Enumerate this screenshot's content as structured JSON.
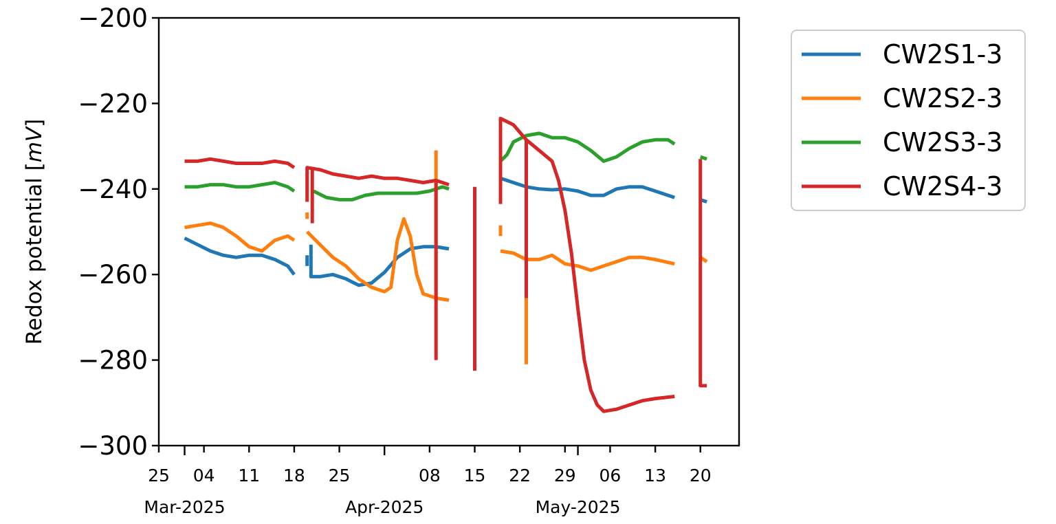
{
  "chart_data": {
    "type": "line",
    "title": "",
    "xlabel": "",
    "ylabel": "Redox potential",
    "ylabel_unit": "mV",
    "ylim": [
      -300,
      -200
    ],
    "yticks": [
      -300,
      -280,
      -260,
      -240,
      -220,
      -200
    ],
    "ytick_labels": [
      "−300",
      "−280",
      "−260",
      "−240",
      "−220",
      "−200"
    ],
    "xlim": [
      "2025-02-25",
      "2025-05-26"
    ],
    "grid": false,
    "legend": "outside-top-right",
    "xticks_major": [
      {
        "date": "2025-02-25",
        "label": "25"
      },
      {
        "date": "2025-03-04",
        "label": "04"
      },
      {
        "date": "2025-03-11",
        "label": "11"
      },
      {
        "date": "2025-03-18",
        "label": "18"
      },
      {
        "date": "2025-03-25",
        "label": "25"
      },
      {
        "date": "2025-04-08",
        "label": "08"
      },
      {
        "date": "2025-04-15",
        "label": "15"
      },
      {
        "date": "2025-04-22",
        "label": "22"
      },
      {
        "date": "2025-04-29",
        "label": "29"
      },
      {
        "date": "2025-05-06",
        "label": "06"
      },
      {
        "date": "2025-05-13",
        "label": "13"
      },
      {
        "date": "2025-05-20",
        "label": "20"
      }
    ],
    "xticks_month": [
      {
        "date": "2025-03-01",
        "label": "Mar-2025"
      },
      {
        "date": "2025-04-01",
        "label": "Apr-2025"
      },
      {
        "date": "2025-05-01",
        "label": "May-2025"
      }
    ],
    "series": [
      {
        "name": "CW2S1-3",
        "color": "#1f77b4",
        "segments": [
          [
            [
              "2025-03-01",
              -251.5
            ],
            [
              "2025-03-03",
              -253
            ],
            [
              "2025-03-05",
              -254.5
            ],
            [
              "2025-03-07",
              -255.5
            ],
            [
              "2025-03-09",
              -256
            ],
            [
              "2025-03-11",
              -255.5
            ],
            [
              "2025-03-13",
              -255.5
            ],
            [
              "2025-03-15",
              -256.5
            ],
            [
              "2025-03-17",
              -258
            ],
            [
              "2025-03-18",
              -260
            ]
          ],
          [
            [
              "2025-03-20",
              -255.5
            ],
            [
              "2025-03-20",
              -258
            ]
          ],
          [
            [
              "2025-03-20.6",
              -253
            ],
            [
              "2025-03-20.6",
              -260.5
            ],
            [
              "2025-03-22",
              -260.5
            ],
            [
              "2025-03-24",
              -260
            ],
            [
              "2025-03-26",
              -261
            ],
            [
              "2025-03-28",
              -262.5
            ],
            [
              "2025-03-30",
              -262
            ],
            [
              "2025-04-01",
              -259.5
            ],
            [
              "2025-04-03",
              -256
            ],
            [
              "2025-04-05",
              -254
            ],
            [
              "2025-04-07",
              -253.5
            ],
            [
              "2025-04-09",
              -253.5
            ],
            [
              "2025-04-11",
              -254
            ]
          ],
          [
            [
              "2025-04-15",
              -253.5
            ],
            [
              "2025-04-15",
              -255
            ]
          ],
          [
            [
              "2025-04-19",
              -237.5
            ],
            [
              "2025-04-21",
              -238.5
            ],
            [
              "2025-04-23",
              -239.5
            ],
            [
              "2025-04-25",
              -240
            ],
            [
              "2025-04-27",
              -240.2
            ],
            [
              "2025-04-29",
              -240
            ],
            [
              "2025-05-01",
              -240.5
            ],
            [
              "2025-05-03",
              -241.5
            ],
            [
              "2025-05-05",
              -241.5
            ],
            [
              "2025-05-07",
              -240
            ],
            [
              "2025-05-09",
              -239.5
            ],
            [
              "2025-05-11",
              -239.5
            ],
            [
              "2025-05-13",
              -240.5
            ],
            [
              "2025-05-15",
              -241.5
            ],
            [
              "2025-05-16",
              -242
            ]
          ],
          [
            [
              "2025-05-20",
              -242.5
            ],
            [
              "2025-05-21",
              -243
            ]
          ]
        ]
      },
      {
        "name": "CW2S2-3",
        "color": "#ff7f0e",
        "segments": [
          [
            [
              "2025-03-01",
              -249
            ],
            [
              "2025-03-03",
              -248.5
            ],
            [
              "2025-03-05",
              -248
            ],
            [
              "2025-03-07",
              -249
            ],
            [
              "2025-03-09",
              -251
            ],
            [
              "2025-03-11",
              -253.5
            ],
            [
              "2025-03-13",
              -254.5
            ],
            [
              "2025-03-15",
              -252
            ],
            [
              "2025-03-17",
              -251
            ],
            [
              "2025-03-18",
              -252
            ]
          ],
          [
            [
              "2025-03-20",
              -245.5
            ],
            [
              "2025-03-20",
              -247
            ]
          ],
          [
            [
              "2025-03-20",
              -250
            ],
            [
              "2025-03-22",
              -253
            ],
            [
              "2025-03-24",
              -256
            ],
            [
              "2025-03-26",
              -258
            ],
            [
              "2025-03-28",
              -261
            ],
            [
              "2025-03-30",
              -263
            ],
            [
              "2025-04-01",
              -264
            ],
            [
              "2025-04-02",
              -263
            ],
            [
              "2025-04-03",
              -252
            ],
            [
              "2025-04-04",
              -247
            ],
            [
              "2025-04-05",
              -251
            ],
            [
              "2025-04-06",
              -260
            ],
            [
              "2025-04-07",
              -264.5
            ],
            [
              "2025-04-09",
              -265.5
            ],
            [
              "2025-04-11",
              -266
            ]
          ],
          [
            [
              "2025-04-09",
              -231
            ],
            [
              "2025-04-09",
              -266
            ]
          ],
          [
            [
              "2025-04-15",
              -268.5
            ],
            [
              "2025-04-15",
              -270
            ]
          ],
          [
            [
              "2025-04-19",
              -248.5
            ],
            [
              "2025-04-19",
              -251
            ]
          ],
          [
            [
              "2025-04-19",
              -254.5
            ],
            [
              "2025-04-21",
              -255
            ],
            [
              "2025-04-23",
              -256.5
            ],
            [
              "2025-04-25",
              -256.5
            ],
            [
              "2025-04-27",
              -255.5
            ],
            [
              "2025-04-29",
              -257.5
            ],
            [
              "2025-05-01",
              -258
            ],
            [
              "2025-05-03",
              -259
            ],
            [
              "2025-05-05",
              -258
            ],
            [
              "2025-05-07",
              -257
            ],
            [
              "2025-05-09",
              -256
            ],
            [
              "2025-05-11",
              -256
            ],
            [
              "2025-05-13",
              -256.5
            ],
            [
              "2025-05-16",
              -257.5
            ]
          ],
          [
            [
              "2025-04-23",
              -281
            ],
            [
              "2025-04-23",
              -257
            ]
          ],
          [
            [
              "2025-05-20",
              -256
            ],
            [
              "2025-05-21",
              -257
            ]
          ]
        ]
      },
      {
        "name": "CW2S3-3",
        "color": "#2ca02c",
        "segments": [
          [
            [
              "2025-03-01",
              -239.5
            ],
            [
              "2025-03-03",
              -239.5
            ],
            [
              "2025-03-05",
              -239
            ],
            [
              "2025-03-07",
              -239
            ],
            [
              "2025-03-09",
              -239.5
            ],
            [
              "2025-03-11",
              -239.5
            ],
            [
              "2025-03-13",
              -239
            ],
            [
              "2025-03-15",
              -238.5
            ],
            [
              "2025-03-17",
              -239.5
            ],
            [
              "2025-03-18",
              -240.5
            ]
          ],
          [
            [
              "2025-03-21",
              -240.5
            ],
            [
              "2025-03-23",
              -242
            ],
            [
              "2025-03-25",
              -242.5
            ],
            [
              "2025-03-27",
              -242.5
            ],
            [
              "2025-03-29",
              -241.5
            ],
            [
              "2025-03-31",
              -241
            ],
            [
              "2025-04-02",
              -241
            ],
            [
              "2025-04-04",
              -241
            ],
            [
              "2025-04-06",
              -241
            ],
            [
              "2025-04-08",
              -240.5
            ],
            [
              "2025-04-10",
              -239.5
            ],
            [
              "2025-04-11",
              -240
            ]
          ],
          [
            [
              "2025-04-15",
              -242
            ],
            [
              "2025-04-15",
              -243
            ]
          ],
          [
            [
              "2025-04-19",
              -233.5
            ],
            [
              "2025-04-20",
              -232
            ],
            [
              "2025-04-21",
              -229
            ],
            [
              "2025-04-23",
              -227.5
            ],
            [
              "2025-04-25",
              -227
            ],
            [
              "2025-04-27",
              -228
            ],
            [
              "2025-04-29",
              -228
            ],
            [
              "2025-05-01",
              -229
            ],
            [
              "2025-05-03",
              -231
            ],
            [
              "2025-05-05",
              -233.5
            ],
            [
              "2025-05-07",
              -232.5
            ],
            [
              "2025-05-09",
              -230.5
            ],
            [
              "2025-05-11",
              -229
            ],
            [
              "2025-05-13",
              -228.5
            ],
            [
              "2025-05-15",
              -228.5
            ],
            [
              "2025-05-16",
              -229.5
            ]
          ],
          [
            [
              "2025-05-20",
              -232.5
            ],
            [
              "2025-05-21",
              -233
            ]
          ]
        ]
      },
      {
        "name": "CW2S4-3",
        "color": "#d62728",
        "segments": [
          [
            [
              "2025-03-01",
              -233.5
            ],
            [
              "2025-03-03",
              -233.5
            ],
            [
              "2025-03-05",
              -233
            ],
            [
              "2025-03-07",
              -233.5
            ],
            [
              "2025-03-09",
              -234
            ],
            [
              "2025-03-11",
              -234
            ],
            [
              "2025-03-13",
              -234
            ],
            [
              "2025-03-15",
              -233.5
            ],
            [
              "2025-03-17",
              -234
            ],
            [
              "2025-03-18",
              -235
            ]
          ],
          [
            [
              "2025-03-20",
              -243
            ],
            [
              "2025-03-20",
              -235
            ],
            [
              "2025-03-22",
              -235.5
            ],
            [
              "2025-03-24",
              -236.5
            ],
            [
              "2025-03-26",
              -237
            ],
            [
              "2025-03-28",
              -237.5
            ],
            [
              "2025-03-30",
              -237
            ],
            [
              "2025-04-01",
              -237.5
            ],
            [
              "2025-04-03",
              -237.5
            ],
            [
              "2025-04-05",
              -238
            ],
            [
              "2025-04-07",
              -238.5
            ],
            [
              "2025-04-09",
              -238
            ],
            [
              "2025-04-11",
              -239
            ]
          ],
          [
            [
              "2025-03-20.8",
              -235.5
            ],
            [
              "2025-03-20.8",
              -248
            ]
          ],
          [
            [
              "2025-04-09",
              -238.5
            ],
            [
              "2025-04-09",
              -280
            ]
          ],
          [
            [
              "2025-04-15",
              -282.5
            ],
            [
              "2025-04-15",
              -239.5
            ]
          ],
          [
            [
              "2025-04-19",
              -243.5
            ],
            [
              "2025-04-19",
              -223.5
            ],
            [
              "2025-04-21",
              -225
            ],
            [
              "2025-04-23",
              -228.5
            ],
            [
              "2025-04-25",
              -231
            ],
            [
              "2025-04-27",
              -233.5
            ],
            [
              "2025-04-28",
              -238
            ],
            [
              "2025-04-29",
              -245
            ],
            [
              "2025-04-30",
              -255
            ],
            [
              "2025-05-01",
              -268
            ],
            [
              "2025-05-02",
              -280
            ],
            [
              "2025-05-03",
              -287
            ],
            [
              "2025-05-04",
              -290.5
            ],
            [
              "2025-05-05",
              -292
            ],
            [
              "2025-05-07",
              -291.5
            ],
            [
              "2025-05-09",
              -290.5
            ],
            [
              "2025-05-11",
              -289.5
            ],
            [
              "2025-05-13",
              -289
            ],
            [
              "2025-05-16",
              -288.5
            ]
          ],
          [
            [
              "2025-04-23",
              -228.5
            ],
            [
              "2025-04-23",
              -265.5
            ]
          ],
          [
            [
              "2025-05-20",
              -233
            ],
            [
              "2025-05-20",
              -286
            ],
            [
              "2025-05-21",
              -286
            ]
          ]
        ]
      }
    ]
  }
}
